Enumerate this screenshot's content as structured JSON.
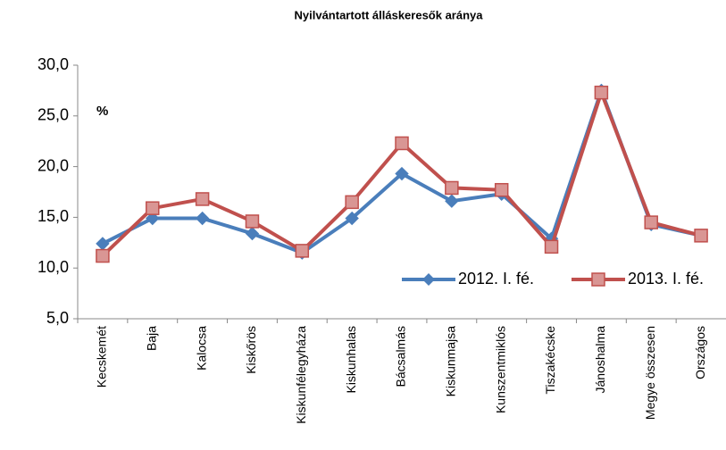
{
  "chart_data": {
    "type": "line",
    "title": "Nyilvántartott álláskeresők aránya",
    "annotation": "%",
    "categories": [
      "Kecskemét",
      "Baja",
      "Kalocsa",
      "Kiskőrös",
      "Kiskunfélegyháza",
      "Kiskunhalas",
      "Bácsalmás",
      "Kiskunmajsa",
      "Kunszentmiklós",
      "Tiszakécske",
      "Jánoshalma",
      "Megye összesen",
      "Országos"
    ],
    "series": [
      {
        "name": "2012. I. fé.",
        "color": "#4a7ebb",
        "marker": "diamond",
        "values": [
          12.4,
          14.9,
          14.9,
          13.4,
          11.5,
          14.9,
          19.3,
          16.6,
          17.3,
          12.9,
          27.5,
          14.3,
          13.2
        ]
      },
      {
        "name": "2013. I. fé.",
        "color": "#c0504d",
        "marker": "square",
        "values": [
          11.2,
          15.9,
          16.8,
          14.6,
          11.7,
          16.5,
          22.3,
          17.9,
          17.7,
          12.1,
          27.3,
          14.5,
          13.2
        ]
      }
    ],
    "ylim": [
      5,
      30
    ],
    "yticks": [
      {
        "value": 5,
        "label": "5,0"
      },
      {
        "value": 10,
        "label": "10,0"
      },
      {
        "value": 15,
        "label": "15,0"
      },
      {
        "value": 20,
        "label": "20,0"
      },
      {
        "value": 25,
        "label": "25,0"
      },
      {
        "value": 30,
        "label": "30,0"
      }
    ],
    "grid": false
  }
}
